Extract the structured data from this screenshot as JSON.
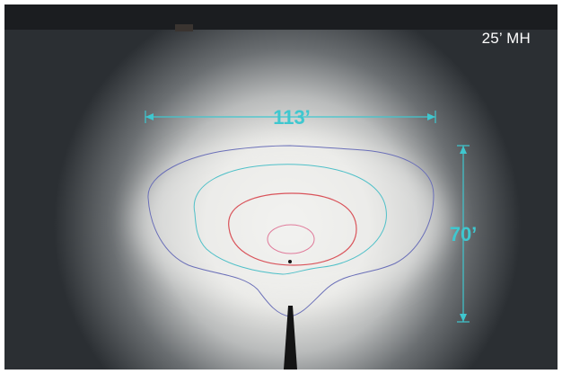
{
  "mounting_height_label": "25’ MH",
  "width_label": "113’",
  "depth_label": "70’",
  "colors": {
    "dimension": "#3fc7cf",
    "outer_contour": "#6a6fb8",
    "second_contour": "#4fc0c8",
    "third_contour": "#d9535a",
    "inner_contour": "#e07a9a",
    "background": "#2b2f33"
  }
}
